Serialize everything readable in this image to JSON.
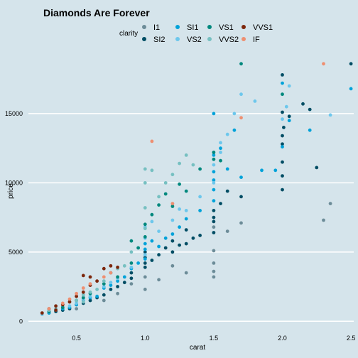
{
  "chart_data": {
    "type": "scatter",
    "title": "Diamonds Are Forever",
    "xlabel": "carat",
    "ylabel": "price",
    "xlim": [
      0.15,
      2.52
    ],
    "ylim": [
      -500,
      19000
    ],
    "x_ticks": [
      0.5,
      1.0,
      1.5,
      2.0,
      2.5
    ],
    "x_tick_labels": [
      "0.5",
      "1.0",
      "1.5",
      "2.0",
      "2.5"
    ],
    "y_ticks": [
      0,
      5000,
      10000,
      15000
    ],
    "y_tick_labels": [
      "0",
      "5000",
      "10000",
      "15000"
    ],
    "grid": "horizontal",
    "legend": {
      "title": "clarity",
      "position": "top",
      "entries": [
        {
          "label": "I1",
          "color": "#6c8c98"
        },
        {
          "label": "SI2",
          "color": "#014d64"
        },
        {
          "label": "SI1",
          "color": "#01a2d9"
        },
        {
          "label": "VS2",
          "color": "#6dc7ec"
        },
        {
          "label": "VS1",
          "color": "#00887d"
        },
        {
          "label": "VVS2",
          "color": "#76c0c1"
        },
        {
          "label": "VVS1",
          "color": "#7c260b"
        },
        {
          "label": "IF",
          "color": "#ee8f71"
        }
      ]
    },
    "series": [
      {
        "name": "I1",
        "points": [
          [
            0.5,
            900
          ],
          [
            0.7,
            1500
          ],
          [
            0.9,
            2700
          ],
          [
            1.0,
            2300
          ],
          [
            1.0,
            3200
          ],
          [
            1.1,
            3000
          ],
          [
            1.3,
            3500
          ],
          [
            1.5,
            3600
          ],
          [
            1.5,
            4200
          ],
          [
            1.5,
            3200
          ],
          [
            1.5,
            5100
          ],
          [
            1.7,
            7100
          ],
          [
            1.5,
            6800
          ],
          [
            1.6,
            6500
          ],
          [
            2.3,
            7300
          ],
          [
            2.35,
            8500
          ],
          [
            1.2,
            4000
          ],
          [
            0.8,
            2000
          ]
        ]
      },
      {
        "name": "SI2",
        "points": [
          [
            0.3,
            600
          ],
          [
            0.35,
            700
          ],
          [
            0.4,
            800
          ],
          [
            0.45,
            900
          ],
          [
            0.5,
            1200
          ],
          [
            0.55,
            1300
          ],
          [
            0.6,
            1500
          ],
          [
            0.65,
            1700
          ],
          [
            0.7,
            1900
          ],
          [
            0.75,
            2300
          ],
          [
            0.8,
            2500
          ],
          [
            0.85,
            2800
          ],
          [
            0.9,
            3100
          ],
          [
            0.9,
            3500
          ],
          [
            1.0,
            3900
          ],
          [
            1.0,
            4200
          ],
          [
            1.0,
            4600
          ],
          [
            1.0,
            5000
          ],
          [
            1.05,
            4400
          ],
          [
            1.1,
            4800
          ],
          [
            1.15,
            5300
          ],
          [
            1.2,
            5000
          ],
          [
            1.25,
            5500
          ],
          [
            1.3,
            5600
          ],
          [
            1.35,
            6000
          ],
          [
            1.4,
            6200
          ],
          [
            1.5,
            6400
          ],
          [
            1.5,
            7200
          ],
          [
            1.5,
            7500
          ],
          [
            1.5,
            8000
          ],
          [
            1.55,
            8500
          ],
          [
            1.6,
            9400
          ],
          [
            1.7,
            9000
          ],
          [
            2.0,
            9500
          ],
          [
            2.0,
            10500
          ],
          [
            2.0,
            11500
          ],
          [
            2.0,
            12800
          ],
          [
            2.0,
            13400
          ],
          [
            2.0,
            15100
          ],
          [
            2.0,
            17800
          ],
          [
            2.01,
            14000
          ],
          [
            2.05,
            14800
          ],
          [
            2.2,
            15300
          ],
          [
            2.25,
            11100
          ],
          [
            2.5,
            18600
          ],
          [
            2.15,
            15700
          ],
          [
            1.2,
            5800
          ],
          [
            1.3,
            6600
          ]
        ]
      },
      {
        "name": "SI1",
        "points": [
          [
            0.3,
            600
          ],
          [
            0.35,
            800
          ],
          [
            0.4,
            900
          ],
          [
            0.45,
            1000
          ],
          [
            0.5,
            1200
          ],
          [
            0.55,
            1500
          ],
          [
            0.6,
            1700
          ],
          [
            0.65,
            1800
          ],
          [
            0.7,
            2400
          ],
          [
            0.75,
            2600
          ],
          [
            0.8,
            2900
          ],
          [
            0.85,
            3200
          ],
          [
            0.9,
            3800
          ],
          [
            0.95,
            4200
          ],
          [
            1.0,
            4500
          ],
          [
            1.0,
            5200
          ],
          [
            1.0,
            5600
          ],
          [
            1.05,
            5800
          ],
          [
            1.1,
            5400
          ],
          [
            1.15,
            6000
          ],
          [
            1.2,
            6300
          ],
          [
            1.25,
            6800
          ],
          [
            1.3,
            7400
          ],
          [
            1.4,
            8000
          ],
          [
            1.5,
            8700
          ],
          [
            1.5,
            9500
          ],
          [
            1.5,
            10200
          ],
          [
            1.5,
            10800
          ],
          [
            1.5,
            12000
          ],
          [
            1.55,
            12500
          ],
          [
            1.6,
            11000
          ],
          [
            1.7,
            10400
          ],
          [
            1.5,
            15000
          ],
          [
            1.65,
            13800
          ],
          [
            1.95,
            10900
          ],
          [
            2.0,
            12600
          ],
          [
            2.05,
            14500
          ],
          [
            2.2,
            13800
          ],
          [
            2.5,
            16800
          ],
          [
            2.0,
            17200
          ],
          [
            1.85,
            10900
          ]
        ]
      },
      {
        "name": "VS2",
        "points": [
          [
            0.25,
            500
          ],
          [
            0.3,
            700
          ],
          [
            0.35,
            800
          ],
          [
            0.4,
            1000
          ],
          [
            0.45,
            1100
          ],
          [
            0.5,
            1300
          ],
          [
            0.55,
            1600
          ],
          [
            0.6,
            1800
          ],
          [
            0.7,
            2500
          ],
          [
            0.75,
            2800
          ],
          [
            0.8,
            3100
          ],
          [
            0.9,
            3900
          ],
          [
            1.0,
            4800
          ],
          [
            1.0,
            6000
          ],
          [
            1.0,
            6800
          ],
          [
            1.05,
            7200
          ],
          [
            1.1,
            6500
          ],
          [
            1.2,
            7300
          ],
          [
            1.25,
            8100
          ],
          [
            1.3,
            8000
          ],
          [
            1.4,
            9000
          ],
          [
            1.5,
            10000
          ],
          [
            1.5,
            11300
          ],
          [
            1.55,
            12900
          ],
          [
            1.6,
            13500
          ],
          [
            1.65,
            15000
          ],
          [
            1.7,
            16400
          ],
          [
            2.0,
            14600
          ],
          [
            2.03,
            15500
          ],
          [
            2.05,
            17000
          ],
          [
            2.35,
            14900
          ],
          [
            1.8,
            15900
          ],
          [
            1.55,
            12200
          ]
        ]
      },
      {
        "name": "VS1",
        "points": [
          [
            0.3,
            700
          ],
          [
            0.4,
            1000
          ],
          [
            0.5,
            1500
          ],
          [
            0.55,
            1700
          ],
          [
            0.6,
            2000
          ],
          [
            0.7,
            2700
          ],
          [
            0.75,
            3500
          ],
          [
            0.8,
            3200
          ],
          [
            0.9,
            4200
          ],
          [
            0.95,
            5300
          ],
          [
            1.0,
            6100
          ],
          [
            1.0,
            7000
          ],
          [
            1.05,
            7700
          ],
          [
            1.1,
            8400
          ],
          [
            1.15,
            9200
          ],
          [
            1.2,
            8300
          ],
          [
            1.3,
            9400
          ],
          [
            1.4,
            11000
          ],
          [
            1.5,
            12200
          ],
          [
            1.5,
            11700
          ],
          [
            1.55,
            11600
          ],
          [
            1.7,
            18600
          ],
          [
            2.0,
            16400
          ],
          [
            1.25,
            9900
          ],
          [
            0.9,
            5800
          ]
        ]
      },
      {
        "name": "VVS2",
        "points": [
          [
            0.3,
            800
          ],
          [
            0.35,
            900
          ],
          [
            0.4,
            1200
          ],
          [
            0.45,
            1400
          ],
          [
            0.5,
            1500
          ],
          [
            0.55,
            1900
          ],
          [
            0.6,
            2100
          ],
          [
            0.65,
            2300
          ],
          [
            0.7,
            2900
          ],
          [
            0.8,
            3800
          ],
          [
            0.85,
            4000
          ],
          [
            0.9,
            5000
          ],
          [
            1.0,
            6700
          ],
          [
            1.0,
            8200
          ],
          [
            1.0,
            11000
          ],
          [
            1.05,
            10900
          ],
          [
            1.1,
            9000
          ],
          [
            1.15,
            10000
          ],
          [
            1.2,
            10600
          ],
          [
            1.25,
            11400
          ],
          [
            1.3,
            12000
          ],
          [
            1.35,
            11300
          ],
          [
            1.0,
            10000
          ],
          [
            0.55,
            1400
          ]
        ]
      },
      {
        "name": "VVS1",
        "points": [
          [
            0.25,
            600
          ],
          [
            0.3,
            900
          ],
          [
            0.35,
            1100
          ],
          [
            0.4,
            1200
          ],
          [
            0.45,
            1400
          ],
          [
            0.5,
            1800
          ],
          [
            0.55,
            2100
          ],
          [
            0.55,
            3300
          ],
          [
            0.6,
            3200
          ],
          [
            0.65,
            2900
          ],
          [
            0.7,
            3800
          ],
          [
            0.75,
            4000
          ],
          [
            0.8,
            3900
          ],
          [
            0.6,
            2600
          ],
          [
            0.35,
            800
          ]
        ]
      },
      {
        "name": "IF",
        "points": [
          [
            0.3,
            900
          ],
          [
            0.4,
            1300
          ],
          [
            0.45,
            1600
          ],
          [
            0.5,
            2000
          ],
          [
            0.55,
            2400
          ],
          [
            0.6,
            2700
          ],
          [
            0.7,
            3200
          ],
          [
            1.05,
            13000
          ],
          [
            1.7,
            14700
          ],
          [
            2.3,
            18600
          ],
          [
            1.2,
            8500
          ],
          [
            0.75,
            3500
          ]
        ]
      }
    ]
  }
}
